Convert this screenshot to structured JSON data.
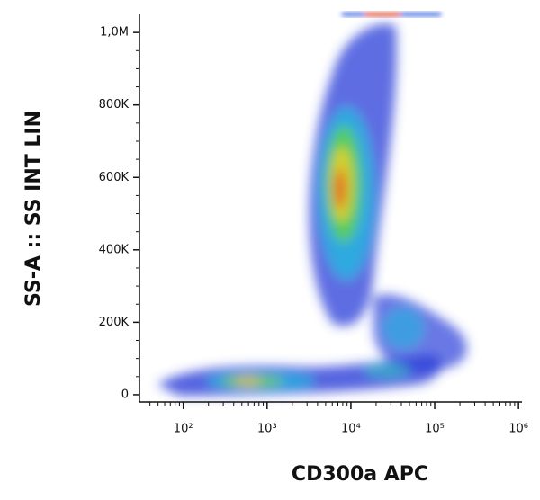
{
  "chart_data": {
    "type": "scatter",
    "x_label": "CD300a APC",
    "y_label": "SS-A :: SS INT LIN",
    "xscale": "log",
    "xlim": [
      30,
      1100000
    ],
    "xticks": [
      {
        "value": 100,
        "label": "10²"
      },
      {
        "value": 1000,
        "label": "10³"
      },
      {
        "value": 10000,
        "label": "10⁴"
      },
      {
        "value": 100000,
        "label": "10⁵"
      },
      {
        "value": 1000000,
        "label": "10⁶"
      }
    ],
    "ylim": [
      -20000,
      1050000
    ],
    "yticks": [
      0,
      {
        "value": 200000,
        "label": "200K"
      },
      {
        "value": 400000,
        "label": "400K"
      },
      {
        "value": 600000,
        "label": "600K"
      },
      {
        "value": 800000,
        "label": "800K"
      },
      {
        "value": 1000000,
        "label": "1,0M"
      }
    ]
  }
}
